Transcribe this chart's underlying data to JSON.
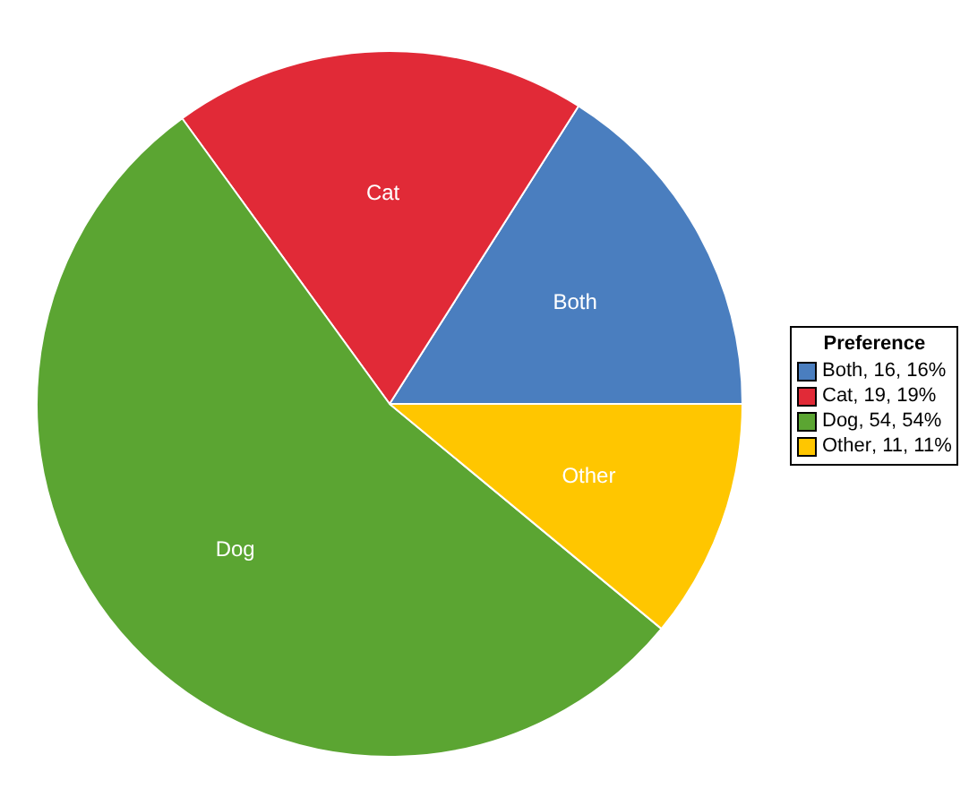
{
  "chart_data": {
    "type": "pie",
    "legend_title": "Preference",
    "legend": "right",
    "categories": [
      "Both",
      "Cat",
      "Dog",
      "Other"
    ],
    "values": [
      16,
      19,
      54,
      11
    ],
    "value_labels": [
      ", 16, 16%",
      ", 19, 19%",
      ", 54, 54%",
      ", 11, 11%"
    ],
    "colors": [
      "#4a7ebf",
      "#e12a37",
      "#5ba532",
      "#ffc600"
    ]
  }
}
